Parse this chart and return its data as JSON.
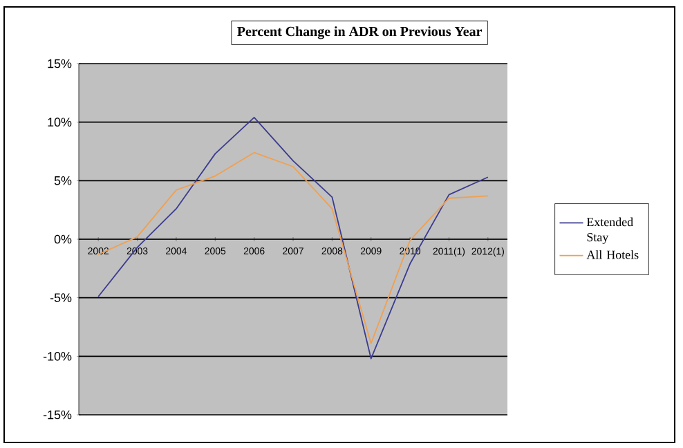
{
  "chart_data": {
    "type": "line",
    "title": "Percent Change in ADR on Previous Year",
    "categories": [
      "2002",
      "2003",
      "2004",
      "2005",
      "2006",
      "2007",
      "2008",
      "2009",
      "2010",
      "2011(1)",
      "2012(1)"
    ],
    "series": [
      {
        "name": "Extended Stay",
        "color": "#3b3b8f",
        "values": [
          -4.9,
          -0.7,
          2.6,
          7.3,
          10.4,
          6.7,
          3.6,
          -10.2,
          -2.1,
          3.8,
          5.3
        ]
      },
      {
        "name": "All Hotels",
        "color": "#f0a050",
        "values": [
          -1.3,
          0.2,
          4.2,
          5.4,
          7.4,
          6.2,
          2.6,
          -8.9,
          -0.1,
          3.5,
          3.7
        ]
      }
    ],
    "ylim": [
      -15,
      15
    ],
    "yticks": [
      {
        "value": -15,
        "label": "-15%"
      },
      {
        "value": -10,
        "label": "-10%"
      },
      {
        "value": -5,
        "label": "-5%"
      },
      {
        "value": 0,
        "label": "0%"
      },
      {
        "value": 5,
        "label": "5%"
      },
      {
        "value": 10,
        "label": "10%"
      },
      {
        "value": 15,
        "label": "15%"
      }
    ],
    "grid": "y",
    "legend": "right"
  }
}
